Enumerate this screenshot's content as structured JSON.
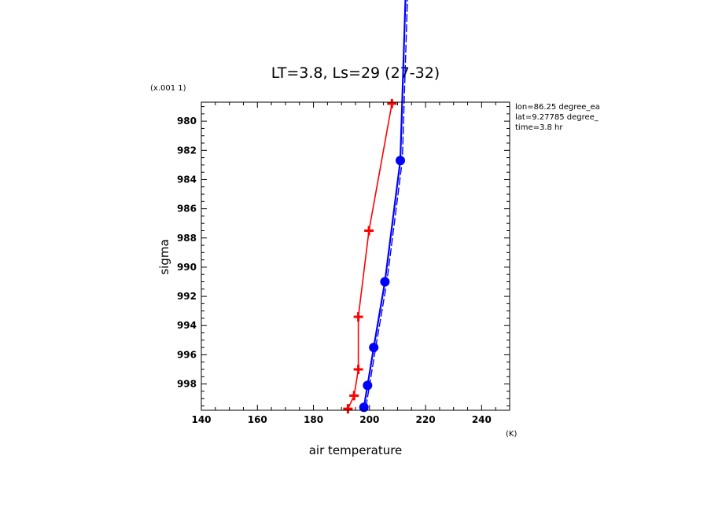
{
  "chart_data": {
    "type": "line",
    "title": "LT=3.8, Ls=29 (27-32)",
    "xlabel": "air temperature",
    "ylabel": "sigma",
    "x_unit": "(K)",
    "y_scale_note": "(x.001 1)",
    "xlim": [
      140,
      250
    ],
    "ylim": [
      999.8,
      978.7
    ],
    "x_ticks": [
      140,
      160,
      180,
      200,
      220,
      240
    ],
    "y_ticks": [
      980,
      982,
      984,
      986,
      988,
      990,
      992,
      994,
      996,
      998
    ],
    "x_tick_labels": [
      "140",
      "160",
      "180",
      "200",
      "220",
      "240"
    ],
    "y_tick_labels": [
      "980",
      "982",
      "984",
      "986",
      "988",
      "990",
      "992",
      "994",
      "996",
      "998"
    ],
    "info": [
      "lon=86.25 degree_ea",
      "lat=9.27785 degree_",
      "time=3.8 hr"
    ],
    "series": [
      {
        "color": "#ff0000",
        "marker": "plus",
        "points": [
          {
            "x": 208.0,
            "y": 978.8
          },
          {
            "x": 199.8,
            "y": 987.5
          },
          {
            "x": 196.0,
            "y": 993.4
          },
          {
            "x": 196.0,
            "y": 997.0
          },
          {
            "x": 194.5,
            "y": 998.8
          },
          {
            "x": 192.3,
            "y": 999.7
          }
        ]
      },
      {
        "color": "#0000ff",
        "marker": "circle",
        "points": [
          {
            "x": 211.0,
            "y": 982.7
          },
          {
            "x": 205.5,
            "y": 991.0
          },
          {
            "x": 201.5,
            "y": 995.5
          },
          {
            "x": 199.3,
            "y": 998.1
          },
          {
            "x": 198.0,
            "y": 999.6
          }
        ]
      }
    ]
  }
}
